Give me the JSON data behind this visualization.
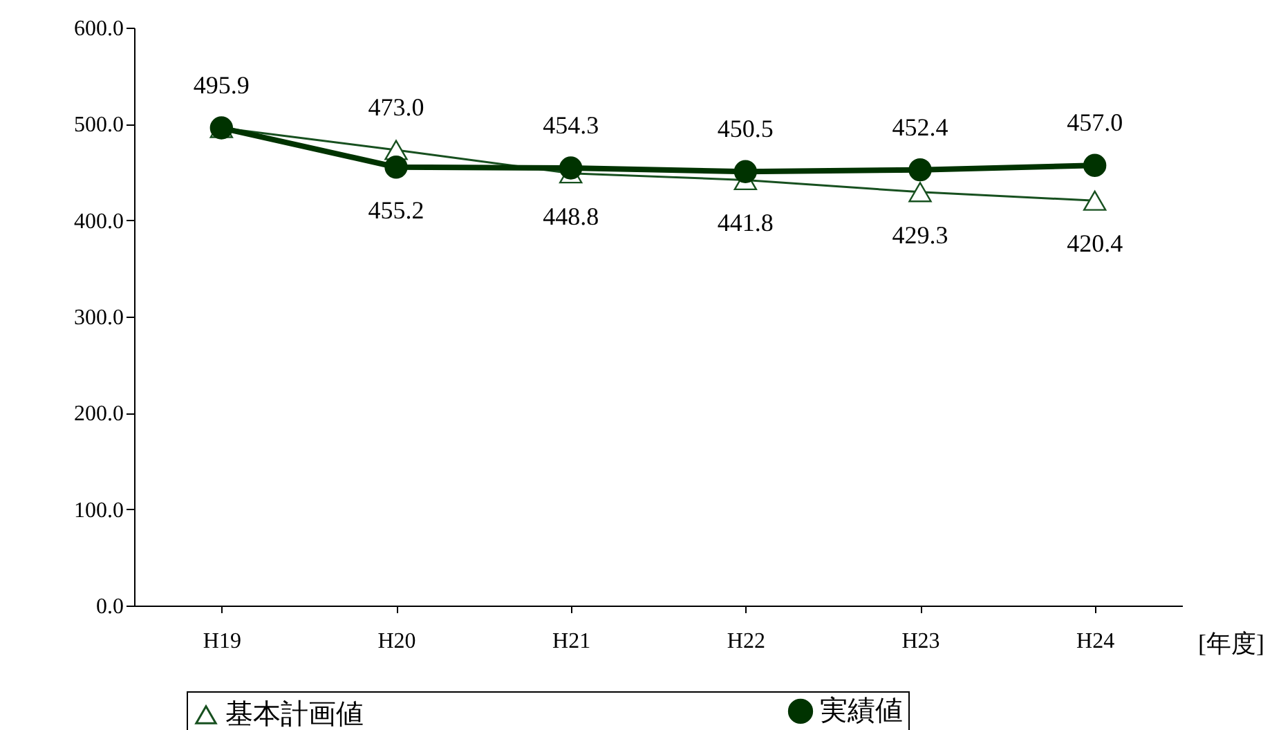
{
  "chart_data": {
    "type": "line",
    "xlabel": "[年度]",
    "categories": [
      "H19",
      "H20",
      "H21",
      "H22",
      "H23",
      "H24"
    ],
    "series": [
      {
        "name": "基本計画値",
        "color": "#17501f",
        "marker": "triangle",
        "values": [
          495.9,
          473.0,
          448.8,
          441.8,
          429.3,
          420.4
        ],
        "value_labels": [
          null,
          "473.0",
          "448.8",
          "441.8",
          "429.3",
          "420.4"
        ]
      },
      {
        "name": "実績値",
        "color": "#003300",
        "marker": "circle",
        "values": [
          495.9,
          455.2,
          454.3,
          450.5,
          452.4,
          457.0
        ],
        "value_labels": [
          "495.9",
          "455.2",
          "454.3",
          "450.5",
          "452.4",
          "457.0"
        ]
      }
    ],
    "ylim": [
      0,
      600
    ],
    "yticks": [
      {
        "value": 0,
        "label": "0.0"
      },
      {
        "value": 100,
        "label": "100.0"
      },
      {
        "value": 200,
        "label": "200.0"
      },
      {
        "value": 300,
        "label": "300.0"
      },
      {
        "value": 400,
        "label": "400.0"
      },
      {
        "value": 500,
        "label": "500.0"
      },
      {
        "value": 600,
        "label": "600.0"
      }
    ],
    "grid": false,
    "legend": "bottom",
    "line_style": "solid"
  }
}
